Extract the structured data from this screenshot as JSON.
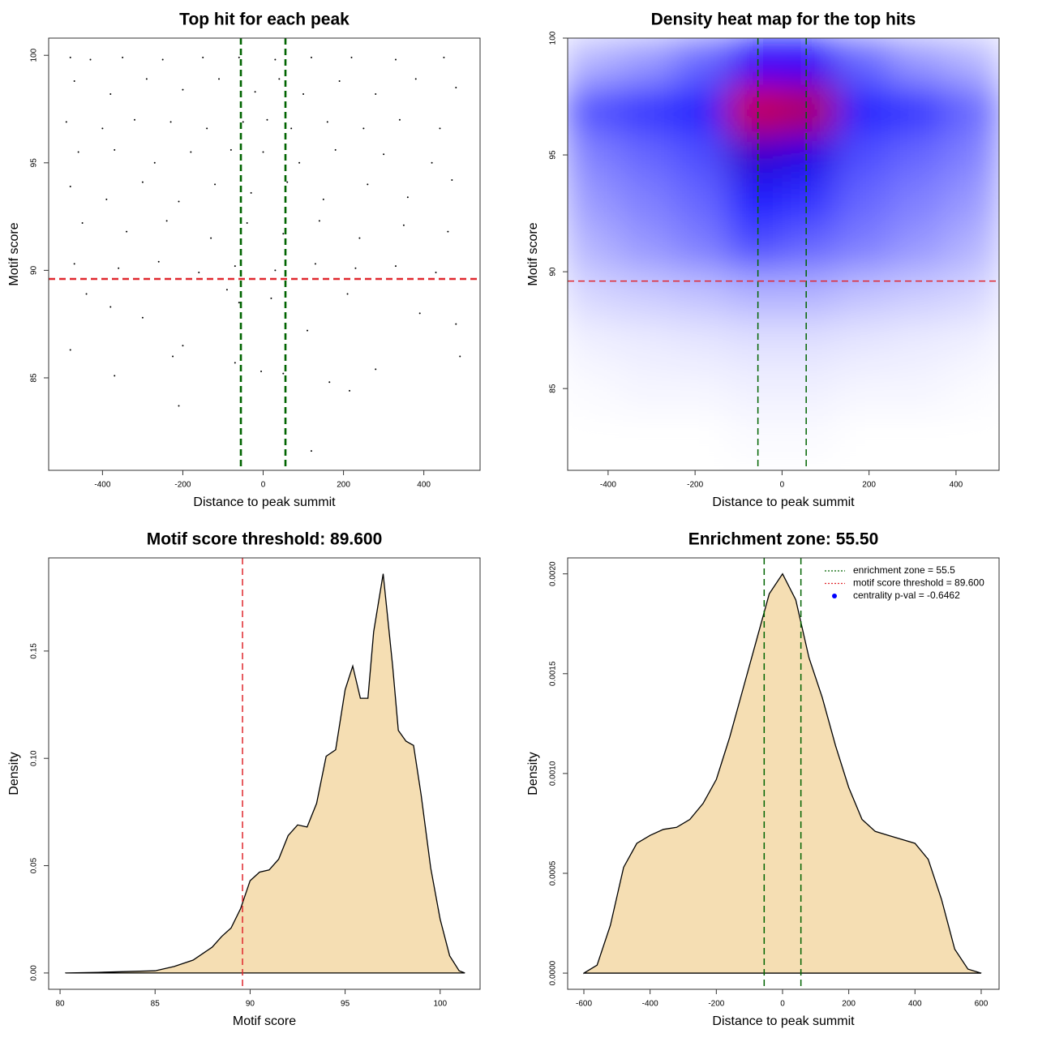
{
  "chart_data": [
    {
      "type": "scatter",
      "title": "Top hit for each peak",
      "x_label": "Distance to peak summit",
      "y_label": "Motif score",
      "color": "#000000",
      "x": [
        -480,
        -430,
        -350,
        -250,
        -150,
        -60,
        30,
        120,
        220,
        330,
        450,
        -470,
        -380,
        -290,
        -200,
        -110,
        -20,
        40,
        100,
        190,
        280,
        380,
        480,
        -490,
        -400,
        -320,
        -230,
        -140,
        -50,
        10,
        70,
        160,
        250,
        340,
        440,
        -460,
        -370,
        -270,
        -180,
        -80,
        0,
        90,
        180,
        300,
        420,
        -480,
        -390,
        -300,
        -210,
        -120,
        -30,
        60,
        150,
        260,
        360,
        470,
        -450,
        -340,
        -240,
        -130,
        -40,
        50,
        140,
        240,
        350,
        460,
        -470,
        -360,
        -260,
        -160,
        -70,
        30,
        130,
        230,
        330,
        430,
        -440,
        -380,
        -300,
        -200,
        -90,
        -60,
        20,
        110,
        210,
        390,
        480,
        -480,
        -370,
        -225,
        -70,
        -5,
        50,
        165,
        215,
        280,
        490,
        -210,
        120
      ],
      "y": [
        99.9,
        99.8,
        99.9,
        99.8,
        99.9,
        99.9,
        99.8,
        99.9,
        99.9,
        99.8,
        99.9,
        98.8,
        98.2,
        98.9,
        98.4,
        98.9,
        98.3,
        98.9,
        98.2,
        98.8,
        98.2,
        98.9,
        98.5,
        96.9,
        96.6,
        97.0,
        96.9,
        96.6,
        96.9,
        97.0,
        96.6,
        96.9,
        96.6,
        97.0,
        96.6,
        95.5,
        95.6,
        95.0,
        95.5,
        95.6,
        95.5,
        95.0,
        95.6,
        95.4,
        95.0,
        93.9,
        93.3,
        94.1,
        93.2,
        94.0,
        93.6,
        94.1,
        93.3,
        94.0,
        93.4,
        94.2,
        92.2,
        91.8,
        92.3,
        91.5,
        92.2,
        91.7,
        92.3,
        91.5,
        92.1,
        91.8,
        90.3,
        90.1,
        90.4,
        89.9,
        90.2,
        90.0,
        90.3,
        90.1,
        90.2,
        89.9,
        88.9,
        88.3,
        87.8,
        86.5,
        89.1,
        88.5,
        88.7,
        87.2,
        88.9,
        88.0,
        87.5,
        86.3,
        85.1,
        86.0,
        85.7,
        85.3,
        85.2,
        84.8,
        84.4,
        85.4,
        86.0,
        83.7,
        81.6
      ],
      "xlim": [
        -534,
        540
      ],
      "ylim": [
        80.7,
        100.8
      ],
      "xticks": [
        -400,
        -200,
        0,
        200,
        400
      ],
      "yticks": [
        85,
        90,
        95,
        100
      ],
      "vlines": [
        {
          "value": -55.5,
          "color": "#006400"
        },
        {
          "value": 55.5,
          "color": "#006400"
        }
      ],
      "hlines": [
        {
          "value": 89.6,
          "color": "#e0282e"
        }
      ]
    },
    {
      "type": "heatmap",
      "title": "Density heat map for the top hits",
      "x_label": "Distance to peak summit",
      "y_label": "Motif score",
      "colors": [
        "#ffffff",
        "#0000ff",
        "#ff0000"
      ],
      "x": [
        -437.5,
        -312.5,
        -187.5,
        -62.5,
        62.5,
        187.5,
        312.5,
        437.5
      ],
      "y": [
        99,
        97,
        95,
        93,
        91,
        89,
        87,
        85,
        83
      ],
      "z": [
        [
          0.15,
          0.2,
          0.3,
          0.5,
          0.5,
          0.3,
          0.2,
          0.15
        ],
        [
          0.35,
          0.4,
          0.45,
          0.9,
          0.85,
          0.45,
          0.4,
          0.3
        ],
        [
          0.25,
          0.3,
          0.35,
          0.6,
          0.55,
          0.35,
          0.3,
          0.25
        ],
        [
          0.2,
          0.25,
          0.3,
          0.45,
          0.4,
          0.3,
          0.25,
          0.2
        ],
        [
          0.15,
          0.2,
          0.25,
          0.35,
          0.3,
          0.25,
          0.2,
          0.15
        ],
        [
          0.08,
          0.1,
          0.12,
          0.15,
          0.15,
          0.12,
          0.1,
          0.08
        ],
        [
          0.03,
          0.04,
          0.05,
          0.06,
          0.06,
          0.05,
          0.04,
          0.03
        ],
        [
          0.01,
          0.02,
          0.02,
          0.03,
          0.03,
          0.02,
          0.02,
          0.01
        ],
        [
          0,
          0,
          0,
          0.01,
          0.01,
          0,
          0,
          0
        ]
      ],
      "xlim": [
        -493,
        499
      ],
      "ylim": [
        81.5,
        100
      ],
      "xticks": [
        -400,
        -200,
        0,
        200,
        400
      ],
      "yticks": [
        85,
        90,
        95,
        100
      ],
      "vlines": [
        {
          "value": -55.5,
          "color": "#006400"
        },
        {
          "value": 55.5,
          "color": "#006400"
        }
      ],
      "hlines": [
        {
          "value": 89.6,
          "color": "#e0282e"
        }
      ]
    },
    {
      "type": "area",
      "title": "Motif score threshold: 89.600",
      "x_label": "Motif score",
      "y_label": "Density",
      "color": "#f5deb3",
      "x": [
        80.3,
        82,
        84,
        85,
        86,
        87,
        88,
        88.5,
        89,
        89.5,
        90,
        90.5,
        91,
        91.5,
        92,
        92.5,
        93,
        93.5,
        94,
        94.5,
        95,
        95.4,
        95.8,
        96.2,
        96.5,
        97,
        97.5,
        97.8,
        98.2,
        98.6,
        99,
        99.5,
        100,
        100.5,
        101,
        101.3
      ],
      "y": [
        0,
        0.0003,
        0.0008,
        0.001,
        0.003,
        0.006,
        0.012,
        0.017,
        0.021,
        0.03,
        0.043,
        0.047,
        0.048,
        0.053,
        0.064,
        0.069,
        0.068,
        0.079,
        0.101,
        0.104,
        0.132,
        0.143,
        0.128,
        0.128,
        0.159,
        0.186,
        0.143,
        0.113,
        0.108,
        0.106,
        0.083,
        0.049,
        0.025,
        0.008,
        0.001,
        0
      ],
      "xlim": [
        79.4,
        102.1
      ],
      "ylim": [
        -0.0076,
        0.1934
      ],
      "xticks": [
        80,
        85,
        90,
        95,
        100
      ],
      "yticks": [
        {
          "value": 0,
          "label": "0.00"
        },
        {
          "value": 0.05,
          "label": "0.05"
        },
        {
          "value": 0.1,
          "label": "0.10"
        },
        {
          "value": 0.15,
          "label": "0.15"
        }
      ],
      "vlines": [
        {
          "value": 89.6,
          "color": "#e0282e"
        }
      ],
      "hlines": []
    },
    {
      "type": "area",
      "title": "Enrichment zone: 55.50",
      "x_label": "Distance to peak summit",
      "y_label": "Density",
      "color": "#f5deb3",
      "x": [
        -600,
        -560,
        -520,
        -480,
        -440,
        -400,
        -360,
        -320,
        -280,
        -240,
        -200,
        -160,
        -120,
        -80,
        -40,
        0,
        40,
        80,
        120,
        160,
        200,
        240,
        280,
        320,
        360,
        400,
        440,
        480,
        520,
        560,
        600
      ],
      "y": [
        0,
        4e-05,
        0.00024,
        0.00053,
        0.00065,
        0.00069,
        0.00072,
        0.00073,
        0.00077,
        0.00085,
        0.00097,
        0.00118,
        0.00142,
        0.00166,
        0.0019,
        0.002,
        0.00187,
        0.00158,
        0.00138,
        0.00114,
        0.00093,
        0.00077,
        0.00071,
        0.00069,
        0.00067,
        0.00065,
        0.00057,
        0.00037,
        0.00012,
        2e-05,
        0
      ],
      "xlim": [
        -649,
        654
      ],
      "ylim": [
        -8.1e-05,
        0.00208
      ],
      "xticks": [
        -600,
        -400,
        -200,
        0,
        200,
        400,
        600
      ],
      "yticks": [
        {
          "value": 0,
          "label": "0.0000"
        },
        {
          "value": 0.0005,
          "label": "0.0005"
        },
        {
          "value": 0.001,
          "label": "0.0010"
        },
        {
          "value": 0.0015,
          "label": "0.0015"
        },
        {
          "value": 0.002,
          "label": "0.0020"
        }
      ],
      "vlines": [
        {
          "value": -55.5,
          "color": "#006400"
        },
        {
          "value": 55.5,
          "color": "#006400"
        }
      ],
      "hlines": [],
      "legend_position": "top-right",
      "legend": [
        {
          "label": "enrichment zone = 55.5",
          "color": "#006400",
          "marker": "line"
        },
        {
          "label": "motif score threshold = 89.600",
          "color": "#e0282e",
          "marker": "line"
        },
        {
          "label": "centrality p-val = -0.6462",
          "color": "#0000ff",
          "marker": "point"
        }
      ]
    }
  ]
}
